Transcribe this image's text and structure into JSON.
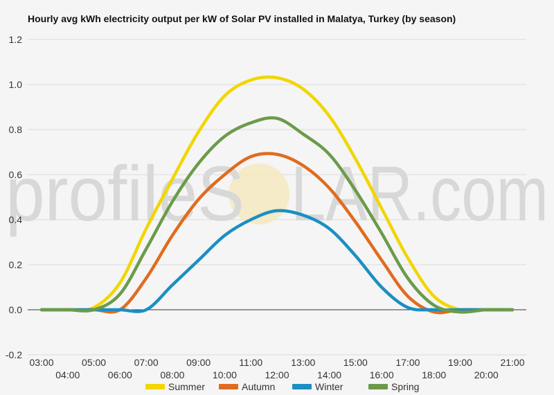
{
  "chart_data": {
    "type": "line",
    "title": "Hourly avg kWh electricity output per kW of Solar PV installed in Malatya, Turkey (by season)",
    "xlabel": "",
    "ylabel": "",
    "ylim": [
      -0.2,
      1.2
    ],
    "yticks": [
      "-0.2",
      "0.0",
      "0.2",
      "0.4",
      "0.6",
      "0.8",
      "1.0",
      "1.2"
    ],
    "categories": [
      "03:00",
      "04:00",
      "05:00",
      "06:00",
      "07:00",
      "08:00",
      "09:00",
      "10:00",
      "11:00",
      "12:00",
      "13:00",
      "14:00",
      "15:00",
      "16:00",
      "17:00",
      "18:00",
      "19:00",
      "20:00",
      "21:00"
    ],
    "grid": true,
    "legend_position": "bottom",
    "series": [
      {
        "name": "Summer",
        "color": "#f2d600",
        "values": [
          0,
          0,
          0.01,
          0.12,
          0.36,
          0.58,
          0.79,
          0.95,
          1.02,
          1.03,
          0.98,
          0.86,
          0.67,
          0.45,
          0.23,
          0.06,
          0.0,
          0,
          0
        ]
      },
      {
        "name": "Autumn",
        "color": "#e06c1f",
        "values": [
          0,
          0,
          0,
          0.0,
          0.14,
          0.33,
          0.49,
          0.6,
          0.68,
          0.69,
          0.64,
          0.54,
          0.39,
          0.22,
          0.06,
          -0.01,
          0,
          0,
          0
        ]
      },
      {
        "name": "Winter",
        "color": "#1b8fc2",
        "values": [
          0,
          0,
          0,
          0,
          0.0,
          0.11,
          0.22,
          0.33,
          0.4,
          0.44,
          0.42,
          0.36,
          0.24,
          0.1,
          0.01,
          0.0,
          0,
          0,
          0
        ]
      },
      {
        "name": "Spring",
        "color": "#6b9b4a",
        "values": [
          0,
          0,
          0.0,
          0.07,
          0.27,
          0.48,
          0.65,
          0.77,
          0.83,
          0.85,
          0.78,
          0.69,
          0.53,
          0.34,
          0.14,
          0.02,
          -0.01,
          0,
          0
        ]
      }
    ]
  },
  "watermark": {
    "left": "profileS",
    "right": "LAR.com"
  }
}
